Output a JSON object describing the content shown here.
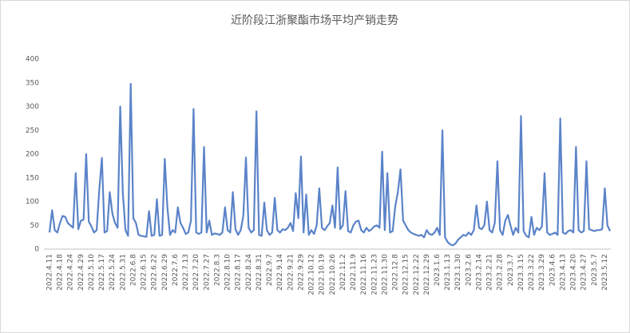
{
  "chart_data": {
    "type": "line",
    "title": "近阶段江浙聚酯市场平均产销走势",
    "categories": [
      "2022.4.11",
      null,
      null,
      null,
      "2022.4.18",
      null,
      null,
      null,
      "2022.4.24",
      null,
      null,
      null,
      "2022.4.29",
      null,
      null,
      null,
      "2022.5.10",
      null,
      null,
      null,
      "2022.5.17",
      null,
      null,
      null,
      "2022.5.24",
      null,
      null,
      null,
      "2022.5.31",
      null,
      null,
      null,
      "2022.6.8",
      null,
      null,
      null,
      "2022.6.15",
      null,
      null,
      null,
      "2022.6.22",
      null,
      null,
      null,
      "2022.6.29",
      null,
      null,
      null,
      "2022.7.6",
      null,
      null,
      null,
      "2022.7.13",
      null,
      null,
      null,
      "2022.7.20",
      null,
      null,
      null,
      "2022.7.27",
      null,
      null,
      null,
      "2022.8.3",
      null,
      null,
      null,
      "2022.8.10",
      null,
      null,
      null,
      "2022.8.17",
      null,
      null,
      null,
      "2022.8.24",
      null,
      null,
      null,
      "2022.8.31",
      null,
      null,
      null,
      "2022.9.7",
      null,
      null,
      null,
      "2022.9.14",
      null,
      null,
      null,
      "2022.9.21",
      null,
      null,
      null,
      "2022.9.29",
      null,
      null,
      null,
      "2022.10.12",
      null,
      null,
      null,
      "2022.10.19",
      null,
      null,
      null,
      "2022.10.26",
      null,
      null,
      null,
      "2022.11.2",
      null,
      null,
      null,
      "2022.11.9",
      null,
      null,
      null,
      "2022.11.16",
      null,
      null,
      null,
      "2022.11.23",
      null,
      null,
      null,
      "2022.11.30",
      null,
      null,
      null,
      "2022.12.8",
      null,
      null,
      null,
      "2022.12.15",
      null,
      null,
      null,
      "2022.12.22",
      null,
      null,
      null,
      "2022.12.29",
      null,
      null,
      null,
      "2023.1.6",
      null,
      null,
      null,
      "2023.1.13",
      null,
      null,
      null,
      "2023.1.30",
      null,
      null,
      null,
      "2023.2.6",
      null,
      null,
      null,
      "2023.2.14",
      null,
      null,
      null,
      "2023.2.21",
      null,
      null,
      null,
      "2023.2.28",
      null,
      null,
      null,
      "2023.3.7",
      null,
      null,
      null,
      "2023.3.15",
      null,
      null,
      null,
      "2023.3.22",
      null,
      null,
      null,
      "2023.3.29",
      null,
      null,
      null,
      "2023.4.6",
      null,
      null,
      null,
      "2023.4.13",
      null,
      null,
      null,
      "2023.4.20",
      null,
      null,
      null,
      "2023.4.27",
      null,
      null,
      null,
      "2023.5.7",
      null,
      null,
      null,
      "2023.5.12",
      null,
      null
    ],
    "values": [
      35,
      82,
      40,
      35,
      55,
      70,
      68,
      55,
      50,
      45,
      160,
      42,
      60,
      62,
      200,
      58,
      48,
      35,
      40,
      125,
      192,
      35,
      38,
      120,
      75,
      55,
      45,
      300,
      118,
      40,
      28,
      348,
      65,
      55,
      30,
      28,
      27,
      26,
      80,
      28,
      30,
      105,
      28,
      30,
      190,
      88,
      30,
      40,
      35,
      88,
      55,
      45,
      32,
      35,
      60,
      295,
      35,
      32,
      35,
      215,
      35,
      60,
      30,
      33,
      32,
      30,
      35,
      88,
      40,
      35,
      120,
      42,
      30,
      40,
      70,
      193,
      45,
      35,
      40,
      290,
      30,
      28,
      98,
      40,
      30,
      35,
      108,
      40,
      35,
      42,
      40,
      45,
      55,
      38,
      118,
      65,
      195,
      35,
      115,
      30,
      40,
      32,
      50,
      128,
      45,
      40,
      48,
      55,
      92,
      45,
      172,
      42,
      50,
      122,
      38,
      35,
      50,
      58,
      60,
      40,
      35,
      45,
      38,
      42,
      48,
      50,
      45,
      205,
      40,
      160,
      35,
      38,
      90,
      120,
      168,
      60,
      50,
      40,
      35,
      32,
      30,
      28,
      30,
      25,
      40,
      32,
      30,
      35,
      45,
      30,
      250,
      25,
      15,
      10,
      8,
      12,
      20,
      25,
      30,
      28,
      35,
      30,
      40,
      92,
      45,
      42,
      50,
      100,
      40,
      35,
      55,
      185,
      40,
      30,
      60,
      72,
      50,
      30,
      45,
      35,
      280,
      38,
      28,
      25,
      68,
      30,
      45,
      40,
      48,
      160,
      35,
      30,
      32,
      35,
      30,
      275,
      35,
      32,
      38,
      40,
      35,
      215,
      40,
      35,
      38,
      185,
      42,
      40,
      38,
      40,
      40,
      42,
      128,
      50,
      38
    ],
    "color": "#5b83c9",
    "ylim": [
      0,
      400
    ],
    "yticks": [
      0,
      50,
      100,
      150,
      200,
      250,
      300,
      350,
      400
    ],
    "grid": false
  }
}
